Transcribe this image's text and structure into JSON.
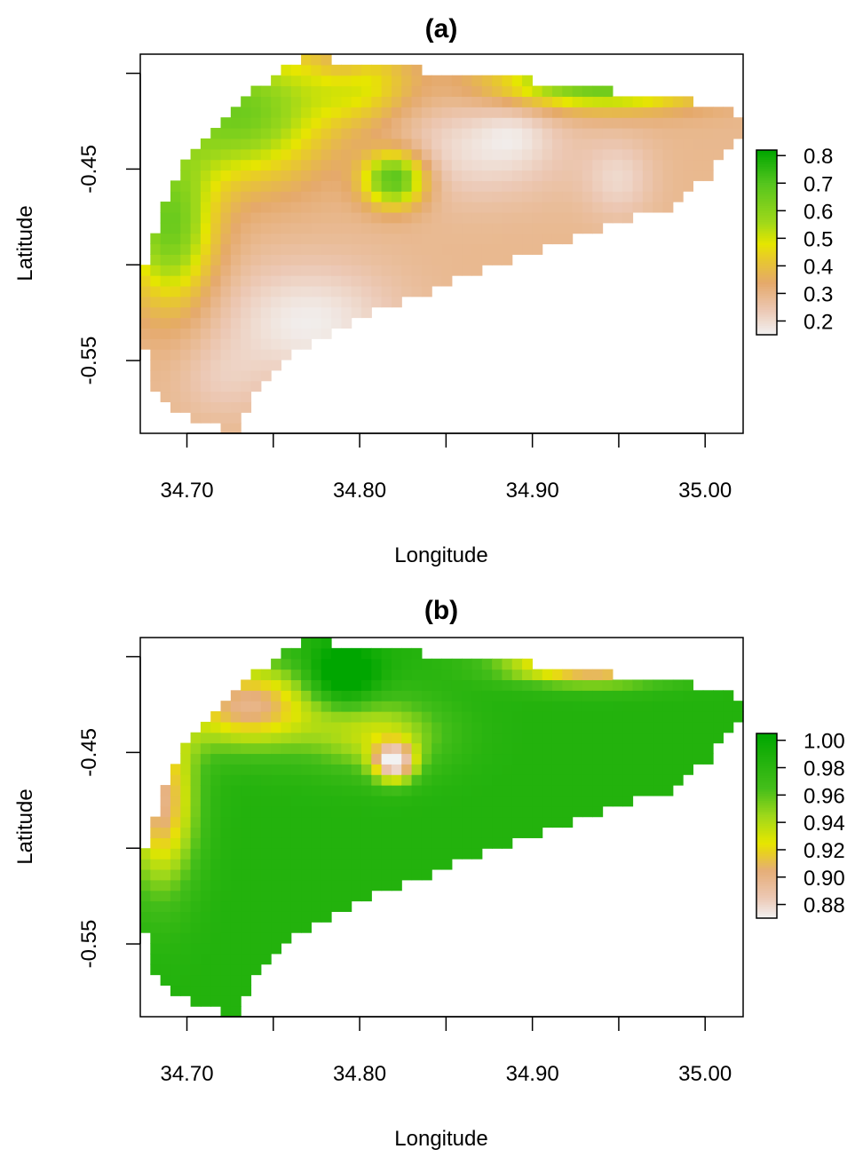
{
  "chart_data": [
    {
      "type": "heatmap",
      "title": "(a)",
      "xlabel": "Longitude",
      "ylabel": "Latitude",
      "xlim": [
        34.673,
        35.022
      ],
      "ylim": [
        -0.588,
        -0.39
      ],
      "x_ticks": [
        34.7,
        34.75,
        34.8,
        34.85,
        34.9,
        34.95,
        35.0
      ],
      "x_tick_labels": [
        "34.70",
        "",
        "34.80",
        "",
        "34.90",
        "",
        "35.00"
      ],
      "y_ticks": [
        -0.55,
        -0.5,
        -0.45,
        -0.4
      ],
      "y_tick_labels": [
        "-0.55",
        "",
        "-0.45",
        ""
      ],
      "legend": {
        "position": "right",
        "zlim": [
          0.15,
          0.82
        ],
        "ticks": [
          0.2,
          0.3,
          0.4,
          0.5,
          0.6,
          0.7,
          0.8
        ],
        "tick_labels": [
          "0.2",
          "0.3",
          "0.4",
          "0.5",
          "0.6",
          "0.7",
          "0.8"
        ]
      },
      "color_stops": [
        {
          "value": 0.15,
          "color": "#f2f2f2"
        },
        {
          "value": 0.24,
          "color": "#ecc8b4"
        },
        {
          "value": 0.34,
          "color": "#e5a96a"
        },
        {
          "value": 0.44,
          "color": "#e8cf22"
        },
        {
          "value": 0.48,
          "color": "#e6e600"
        },
        {
          "value": 0.56,
          "color": "#9fd81a"
        },
        {
          "value": 0.7,
          "color": "#55c51e"
        },
        {
          "value": 0.82,
          "color": "#00a600"
        }
      ],
      "boundary": [
        [
          34.673,
          -0.51
        ],
        [
          34.685,
          -0.47
        ],
        [
          34.698,
          -0.445
        ],
        [
          34.72,
          -0.425
        ],
        [
          34.745,
          -0.405
        ],
        [
          34.765,
          -0.392
        ],
        [
          34.778,
          -0.39
        ],
        [
          34.79,
          -0.395
        ],
        [
          34.83,
          -0.398
        ],
        [
          34.87,
          -0.401
        ],
        [
          34.92,
          -0.406
        ],
        [
          34.96,
          -0.411
        ],
        [
          34.995,
          -0.415
        ],
        [
          35.01,
          -0.417
        ],
        [
          35.018,
          -0.42
        ],
        [
          35.022,
          -0.43
        ],
        [
          35.015,
          -0.44
        ],
        [
          35.0,
          -0.455
        ],
        [
          34.98,
          -0.47
        ],
        [
          34.95,
          -0.478
        ],
        [
          34.9,
          -0.494
        ],
        [
          34.85,
          -0.51
        ],
        [
          34.8,
          -0.528
        ],
        [
          34.76,
          -0.548
        ],
        [
          34.74,
          -0.567
        ],
        [
          34.73,
          -0.588
        ],
        [
          34.7,
          -0.58
        ],
        [
          34.68,
          -0.565
        ],
        [
          34.675,
          -0.54
        ]
      ],
      "field": {
        "base": 0.29,
        "features": [
          {
            "x": 34.73,
            "y": -0.42,
            "rx": 0.05,
            "ry": 0.035,
            "a": 0.36
          },
          {
            "x": 34.69,
            "y": -0.48,
            "rx": 0.025,
            "ry": 0.04,
            "a": 0.36
          },
          {
            "x": 34.82,
            "y": -0.455,
            "rx": 0.018,
            "ry": 0.014,
            "a": 0.42
          },
          {
            "x": 34.94,
            "y": -0.405,
            "rx": 0.06,
            "ry": 0.013,
            "a": 0.4
          },
          {
            "x": 34.8,
            "y": -0.405,
            "rx": 0.03,
            "ry": 0.02,
            "a": 0.18
          },
          {
            "x": 34.77,
            "y": -0.53,
            "rx": 0.05,
            "ry": 0.03,
            "a": -0.13
          },
          {
            "x": 34.87,
            "y": -0.44,
            "rx": 0.05,
            "ry": 0.025,
            "a": -0.1
          },
          {
            "x": 34.95,
            "y": -0.455,
            "rx": 0.02,
            "ry": 0.02,
            "a": -0.08
          },
          {
            "x": 34.79,
            "y": -0.395,
            "rx": 0.015,
            "ry": 0.012,
            "a": -0.08
          },
          {
            "x": 34.89,
            "y": -0.43,
            "rx": 0.02,
            "ry": 0.015,
            "a": -0.05
          },
          {
            "x": 34.72,
            "y": -0.56,
            "rx": 0.025,
            "ry": 0.02,
            "a": -0.05
          }
        ]
      }
    },
    {
      "type": "heatmap",
      "title": "(b)",
      "xlabel": "Longitude",
      "ylabel": "Latitude",
      "xlim": [
        34.673,
        35.022
      ],
      "ylim": [
        -0.588,
        -0.39
      ],
      "x_ticks": [
        34.7,
        34.75,
        34.8,
        34.85,
        34.9,
        34.95,
        35.0
      ],
      "x_tick_labels": [
        "34.70",
        "",
        "34.80",
        "",
        "34.90",
        "",
        "35.00"
      ],
      "y_ticks": [
        -0.55,
        -0.5,
        -0.45,
        -0.4
      ],
      "y_tick_labels": [
        "-0.55",
        "",
        "-0.45",
        ""
      ],
      "legend": {
        "position": "right",
        "zlim": [
          0.87,
          1.005
        ],
        "ticks": [
          0.88,
          0.9,
          0.92,
          0.94,
          0.96,
          0.98,
          1.0
        ],
        "tick_labels": [
          "0.88",
          "0.90",
          "0.92",
          "0.94",
          "0.96",
          "0.98",
          "1.00"
        ]
      },
      "color_stops": [
        {
          "value": 0.87,
          "color": "#f2f2f2"
        },
        {
          "value": 0.885,
          "color": "#ecc8b4"
        },
        {
          "value": 0.905,
          "color": "#e6ae78"
        },
        {
          "value": 0.918,
          "color": "#e8cf22"
        },
        {
          "value": 0.925,
          "color": "#e6e600"
        },
        {
          "value": 0.945,
          "color": "#9fd81a"
        },
        {
          "value": 0.965,
          "color": "#45be1a"
        },
        {
          "value": 1.005,
          "color": "#00a600"
        }
      ],
      "boundary": [
        [
          34.673,
          -0.51
        ],
        [
          34.685,
          -0.47
        ],
        [
          34.698,
          -0.445
        ],
        [
          34.72,
          -0.425
        ],
        [
          34.745,
          -0.405
        ],
        [
          34.765,
          -0.392
        ],
        [
          34.778,
          -0.39
        ],
        [
          34.79,
          -0.395
        ],
        [
          34.83,
          -0.398
        ],
        [
          34.87,
          -0.401
        ],
        [
          34.92,
          -0.406
        ],
        [
          34.96,
          -0.411
        ],
        [
          34.995,
          -0.415
        ],
        [
          35.01,
          -0.417
        ],
        [
          35.018,
          -0.42
        ],
        [
          35.022,
          -0.43
        ],
        [
          35.015,
          -0.44
        ],
        [
          35.0,
          -0.455
        ],
        [
          34.98,
          -0.47
        ],
        [
          34.95,
          -0.478
        ],
        [
          34.9,
          -0.494
        ],
        [
          34.85,
          -0.51
        ],
        [
          34.8,
          -0.528
        ],
        [
          34.76,
          -0.548
        ],
        [
          34.74,
          -0.567
        ],
        [
          34.73,
          -0.588
        ],
        [
          34.7,
          -0.58
        ],
        [
          34.68,
          -0.565
        ],
        [
          34.675,
          -0.54
        ]
      ],
      "field": {
        "base": 0.985,
        "features": [
          {
            "x": 34.735,
            "y": -0.425,
            "rx": 0.04,
            "ry": 0.022,
            "a": -0.085
          },
          {
            "x": 34.685,
            "y": -0.475,
            "rx": 0.02,
            "ry": 0.045,
            "a": -0.085
          },
          {
            "x": 34.82,
            "y": -0.455,
            "rx": 0.012,
            "ry": 0.01,
            "a": -0.1
          },
          {
            "x": 34.81,
            "y": -0.44,
            "rx": 0.04,
            "ry": 0.02,
            "a": -0.05
          },
          {
            "x": 34.935,
            "y": -0.404,
            "rx": 0.05,
            "ry": 0.01,
            "a": -0.1
          },
          {
            "x": 34.79,
            "y": -0.41,
            "rx": 0.02,
            "ry": 0.015,
            "a": 0.05
          }
        ]
      }
    }
  ]
}
